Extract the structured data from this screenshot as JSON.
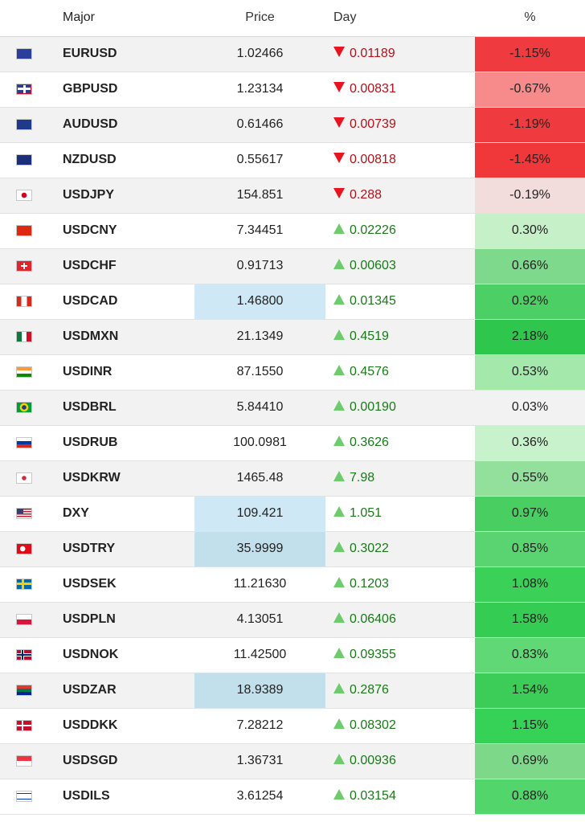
{
  "table": {
    "headers": {
      "major": "Major",
      "price": "Price",
      "day": "Day",
      "pct": "%"
    },
    "rows": [
      {
        "symbol": "EURUSD",
        "price": "1.02466",
        "direction": "down",
        "day": "0.01189",
        "pct": "-1.15%",
        "pct_bg": "#ef3b3f",
        "price_bg": "",
        "flag": "eu-flag-icon"
      },
      {
        "symbol": "GBPUSD",
        "price": "1.23134",
        "direction": "down",
        "day": "0.00831",
        "pct": "-0.67%",
        "pct_bg": "#f78a8a",
        "price_bg": "",
        "flag": "gb-flag-icon"
      },
      {
        "symbol": "AUDUSD",
        "price": "0.61466",
        "direction": "down",
        "day": "0.00739",
        "pct": "-1.19%",
        "pct_bg": "#ef3b3f",
        "price_bg": "",
        "flag": "au-flag-icon"
      },
      {
        "symbol": "NZDUSD",
        "price": "0.55617",
        "direction": "down",
        "day": "0.00818",
        "pct": "-1.45%",
        "pct_bg": "#f0383a",
        "price_bg": "",
        "flag": "nz-flag-icon"
      },
      {
        "symbol": "USDJPY",
        "price": "154.851",
        "direction": "down",
        "day": "0.288",
        "pct": "-0.19%",
        "pct_bg": "#f2dcdc",
        "price_bg": "",
        "flag": "jp-flag-icon"
      },
      {
        "symbol": "USDCNY",
        "price": "7.34451",
        "direction": "up",
        "day": "0.02226",
        "pct": "0.30%",
        "pct_bg": "#c6f0c8",
        "price_bg": "",
        "flag": "cn-flag-icon"
      },
      {
        "symbol": "USDCHF",
        "price": "0.91713",
        "direction": "up",
        "day": "0.00603",
        "pct": "0.66%",
        "pct_bg": "#7fd98c",
        "price_bg": "",
        "flag": "ch-flag-icon"
      },
      {
        "symbol": "USDCAD",
        "price": "1.46800",
        "direction": "up",
        "day": "0.01345",
        "pct": "0.92%",
        "pct_bg": "#4ccf64",
        "price_bg": "#cfe8f5",
        "flag": "ca-flag-icon"
      },
      {
        "symbol": "USDMXN",
        "price": "21.1349",
        "direction": "up",
        "day": "0.4519",
        "pct": "2.18%",
        "pct_bg": "#2fc64e",
        "price_bg": "",
        "flag": "mx-flag-icon"
      },
      {
        "symbol": "USDINR",
        "price": "87.1550",
        "direction": "up",
        "day": "0.4576",
        "pct": "0.53%",
        "pct_bg": "#a5e8ac",
        "price_bg": "",
        "flag": "in-flag-icon"
      },
      {
        "symbol": "USDBRL",
        "price": "5.84410",
        "direction": "up",
        "day": "0.00190",
        "pct": "0.03%",
        "pct_bg": "",
        "price_bg": "",
        "flag": "br-flag-icon"
      },
      {
        "symbol": "USDRUB",
        "price": "100.0981",
        "direction": "up",
        "day": "0.3626",
        "pct": "0.36%",
        "pct_bg": "#c7f2cb",
        "price_bg": "",
        "flag": "ru-flag-icon"
      },
      {
        "symbol": "USDKRW",
        "price": "1465.48",
        "direction": "up",
        "day": "7.98",
        "pct": "0.55%",
        "pct_bg": "#93df9c",
        "price_bg": "",
        "flag": "kr-flag-icon"
      },
      {
        "symbol": "DXY",
        "price": "109.421",
        "direction": "up",
        "day": "1.051",
        "pct": "0.97%",
        "pct_bg": "#49ce62",
        "price_bg": "#cfe8f5",
        "flag": "us-flag-icon"
      },
      {
        "symbol": "USDTRY",
        "price": "35.9999",
        "direction": "up",
        "day": "0.3022",
        "pct": "0.85%",
        "pct_bg": "#5ad470",
        "price_bg": "#c2dfec",
        "flag": "tr-flag-icon"
      },
      {
        "symbol": "USDSEK",
        "price": "11.21630",
        "direction": "up",
        "day": "0.1203",
        "pct": "1.08%",
        "pct_bg": "#3bd058",
        "price_bg": "",
        "flag": "se-flag-icon"
      },
      {
        "symbol": "USDPLN",
        "price": "4.13051",
        "direction": "up",
        "day": "0.06406",
        "pct": "1.58%",
        "pct_bg": "#35cc53",
        "price_bg": "",
        "flag": "pl-flag-icon"
      },
      {
        "symbol": "USDNOK",
        "price": "11.42500",
        "direction": "up",
        "day": "0.09355",
        "pct": "0.83%",
        "pct_bg": "#5fd875",
        "price_bg": "",
        "flag": "no-flag-icon"
      },
      {
        "symbol": "USDZAR",
        "price": "18.9389",
        "direction": "up",
        "day": "0.2876",
        "pct": "1.54%",
        "pct_bg": "#3ccd58",
        "price_bg": "#c2dfec",
        "flag": "za-flag-icon"
      },
      {
        "symbol": "USDDKK",
        "price": "7.28212",
        "direction": "up",
        "day": "0.08302",
        "pct": "1.15%",
        "pct_bg": "#36d257",
        "price_bg": "",
        "flag": "dk-flag-icon"
      },
      {
        "symbol": "USDSGD",
        "price": "1.36731",
        "direction": "up",
        "day": "0.00936",
        "pct": "0.69%",
        "pct_bg": "#7ed88a",
        "price_bg": "",
        "flag": "sg-flag-icon"
      },
      {
        "symbol": "USDILS",
        "price": "3.61254",
        "direction": "up",
        "day": "0.03154",
        "pct": "0.88%",
        "pct_bg": "#52d56b",
        "price_bg": "",
        "flag": "il-flag-icon"
      }
    ]
  }
}
